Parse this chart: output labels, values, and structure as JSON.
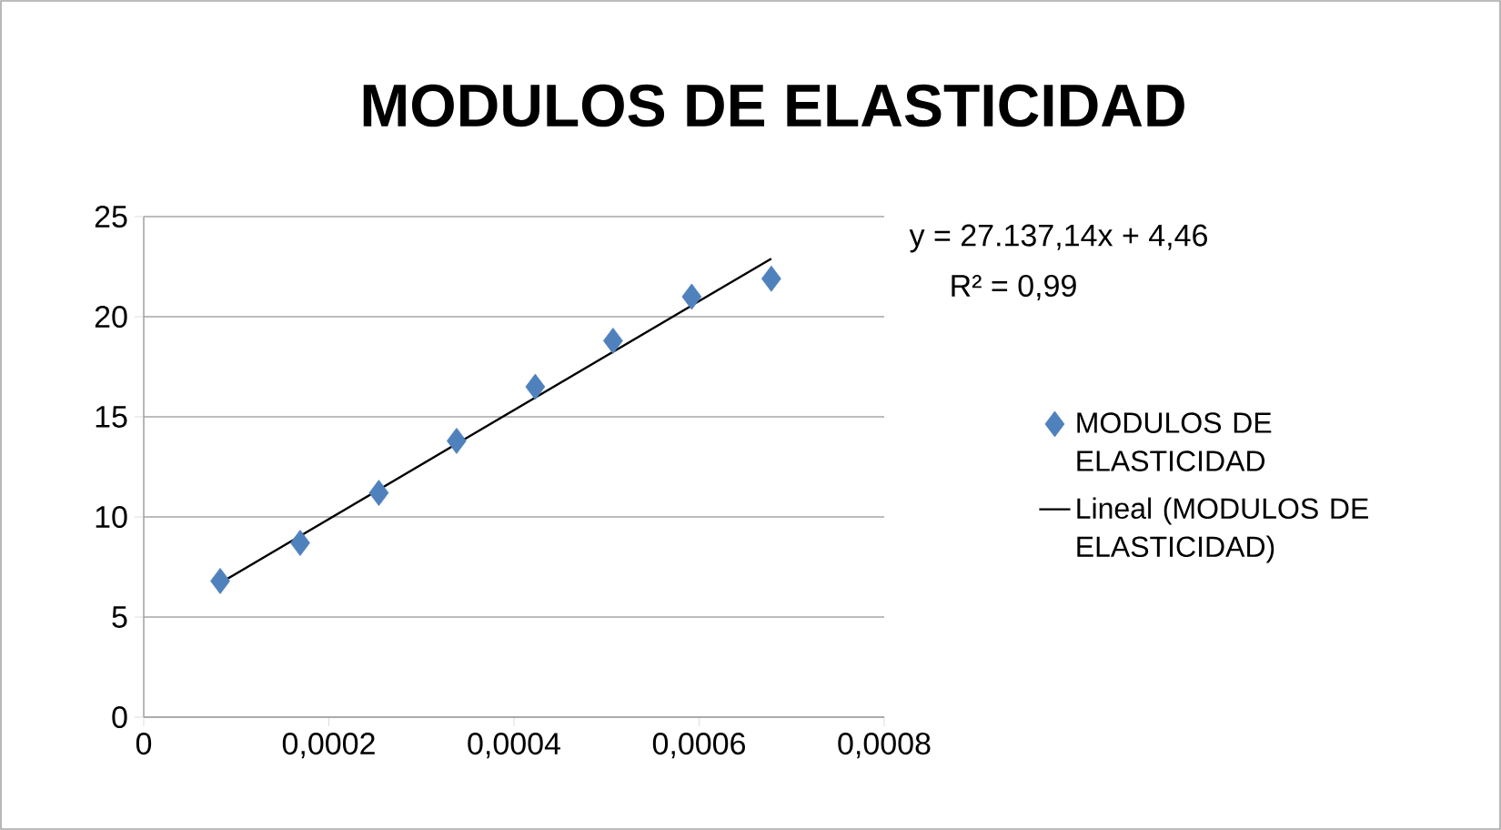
{
  "chart_data": {
    "type": "scatter",
    "title": "MODULOS DE ELASTICIDAD",
    "annotations": [
      "y = 27.137,14x + 4,46",
      "R² = 0,99"
    ],
    "series": [
      {
        "name": "MODULOS DE ELASTICIDAD",
        "color": "#4f81bd",
        "marker": "diamond",
        "x": [
          8.26e-05,
          0.000169,
          0.000254,
          0.000338,
          0.000423,
          0.000507,
          0.000592,
          0.000678
        ],
        "values": [
          6.8,
          8.7,
          11.2,
          13.8,
          16.5,
          18.8,
          21.0,
          21.9
        ]
      },
      {
        "name": "Lineal (MODULOS DE ELASTICIDAD)",
        "type": "line",
        "color": "#000000",
        "marker": "none",
        "x": [
          8.26e-05,
          0.000678
        ],
        "values": [
          6.7,
          22.9
        ]
      }
    ],
    "xlim": [
      0,
      0.0008
    ],
    "ylim": [
      0,
      25
    ],
    "xticks": [
      0,
      {
        "value": 0.0002,
        "label": "0,0002"
      },
      {
        "value": 0.0004,
        "label": "0,0004"
      },
      {
        "value": 0.0006,
        "label": "0,0006"
      },
      {
        "value": 0.0008,
        "label": "0,0008"
      }
    ],
    "yticks": [
      0,
      5,
      10,
      15,
      20,
      25
    ],
    "grid": "y",
    "legend": "right"
  }
}
